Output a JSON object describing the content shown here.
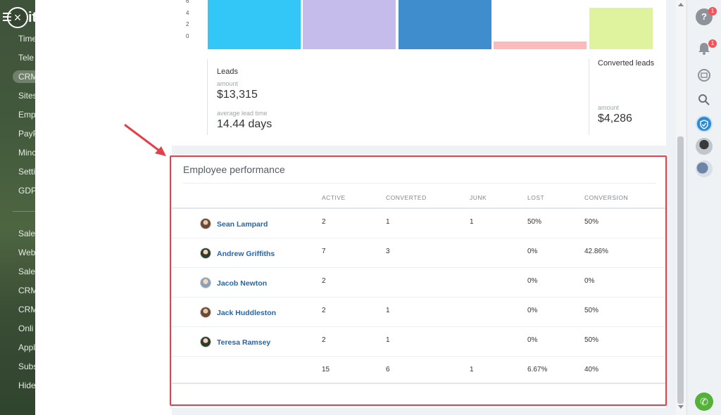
{
  "nav": {
    "close_glyph": "×",
    "logo_fragment": "it",
    "items": [
      "Time",
      "Tele",
      "CRM",
      "Sites",
      "Emp",
      "PayP",
      "Minc",
      "Setti",
      "GDP",
      "Sale",
      "Web",
      "Sale",
      "CRM",
      "CRM",
      "Onli",
      "Appl",
      "Subs",
      "Hide"
    ]
  },
  "chart": {
    "y_ticks": [
      "6",
      "4",
      "2",
      "0"
    ],
    "colors": [
      "#32c7f7",
      "#c6bcec",
      "#3f8dcd",
      "#fbbbbc",
      "#dff39f"
    ]
  },
  "chart_data": {
    "type": "bar",
    "categories": [
      "",
      "",
      "",
      "",
      ""
    ],
    "values": [
      7.3,
      7.3,
      7.3,
      1.1,
      6.2
    ],
    "ylim": [
      0,
      7.3
    ]
  },
  "stats": {
    "leads_title": "Leads",
    "amount_label": "amount",
    "amount_value": "$13,315",
    "lead_time_label": "average lead time",
    "lead_time_value": "14.44 days",
    "converted_title": "Converted leads",
    "converted_amount_label": "amount",
    "converted_amount_value": "$4,286"
  },
  "performance": {
    "title": "Employee performance",
    "headers": [
      "ACTIVE",
      "CONVERTED",
      "JUNK",
      "LOST",
      "CONVERSION"
    ],
    "rows": [
      {
        "name": "Sean Lampard",
        "active": "2",
        "converted": "1",
        "junk": "1",
        "lost": "50%",
        "conversion": "50%"
      },
      {
        "name": "Andrew Griffiths",
        "active": "7",
        "converted": "3",
        "junk": "",
        "lost": "0%",
        "conversion": "42.86%"
      },
      {
        "name": "Jacob Newton",
        "active": "2",
        "converted": "",
        "junk": "",
        "lost": "0%",
        "conversion": "0%"
      },
      {
        "name": "Jack Huddleston",
        "active": "2",
        "converted": "1",
        "junk": "",
        "lost": "0%",
        "conversion": "50%"
      },
      {
        "name": "Teresa Ramsey",
        "active": "2",
        "converted": "1",
        "junk": "",
        "lost": "0%",
        "conversion": "50%"
      }
    ],
    "totals": {
      "active": "15",
      "converted": "6",
      "junk": "1",
      "lost": "6.67%",
      "conversion": "40%"
    }
  },
  "right_panel": {
    "help_badge": "1",
    "notifications_badge": "1"
  },
  "colors": {
    "accent_link": "#2067b0",
    "highlight": "#e2404a",
    "phone": "#56b13a"
  }
}
